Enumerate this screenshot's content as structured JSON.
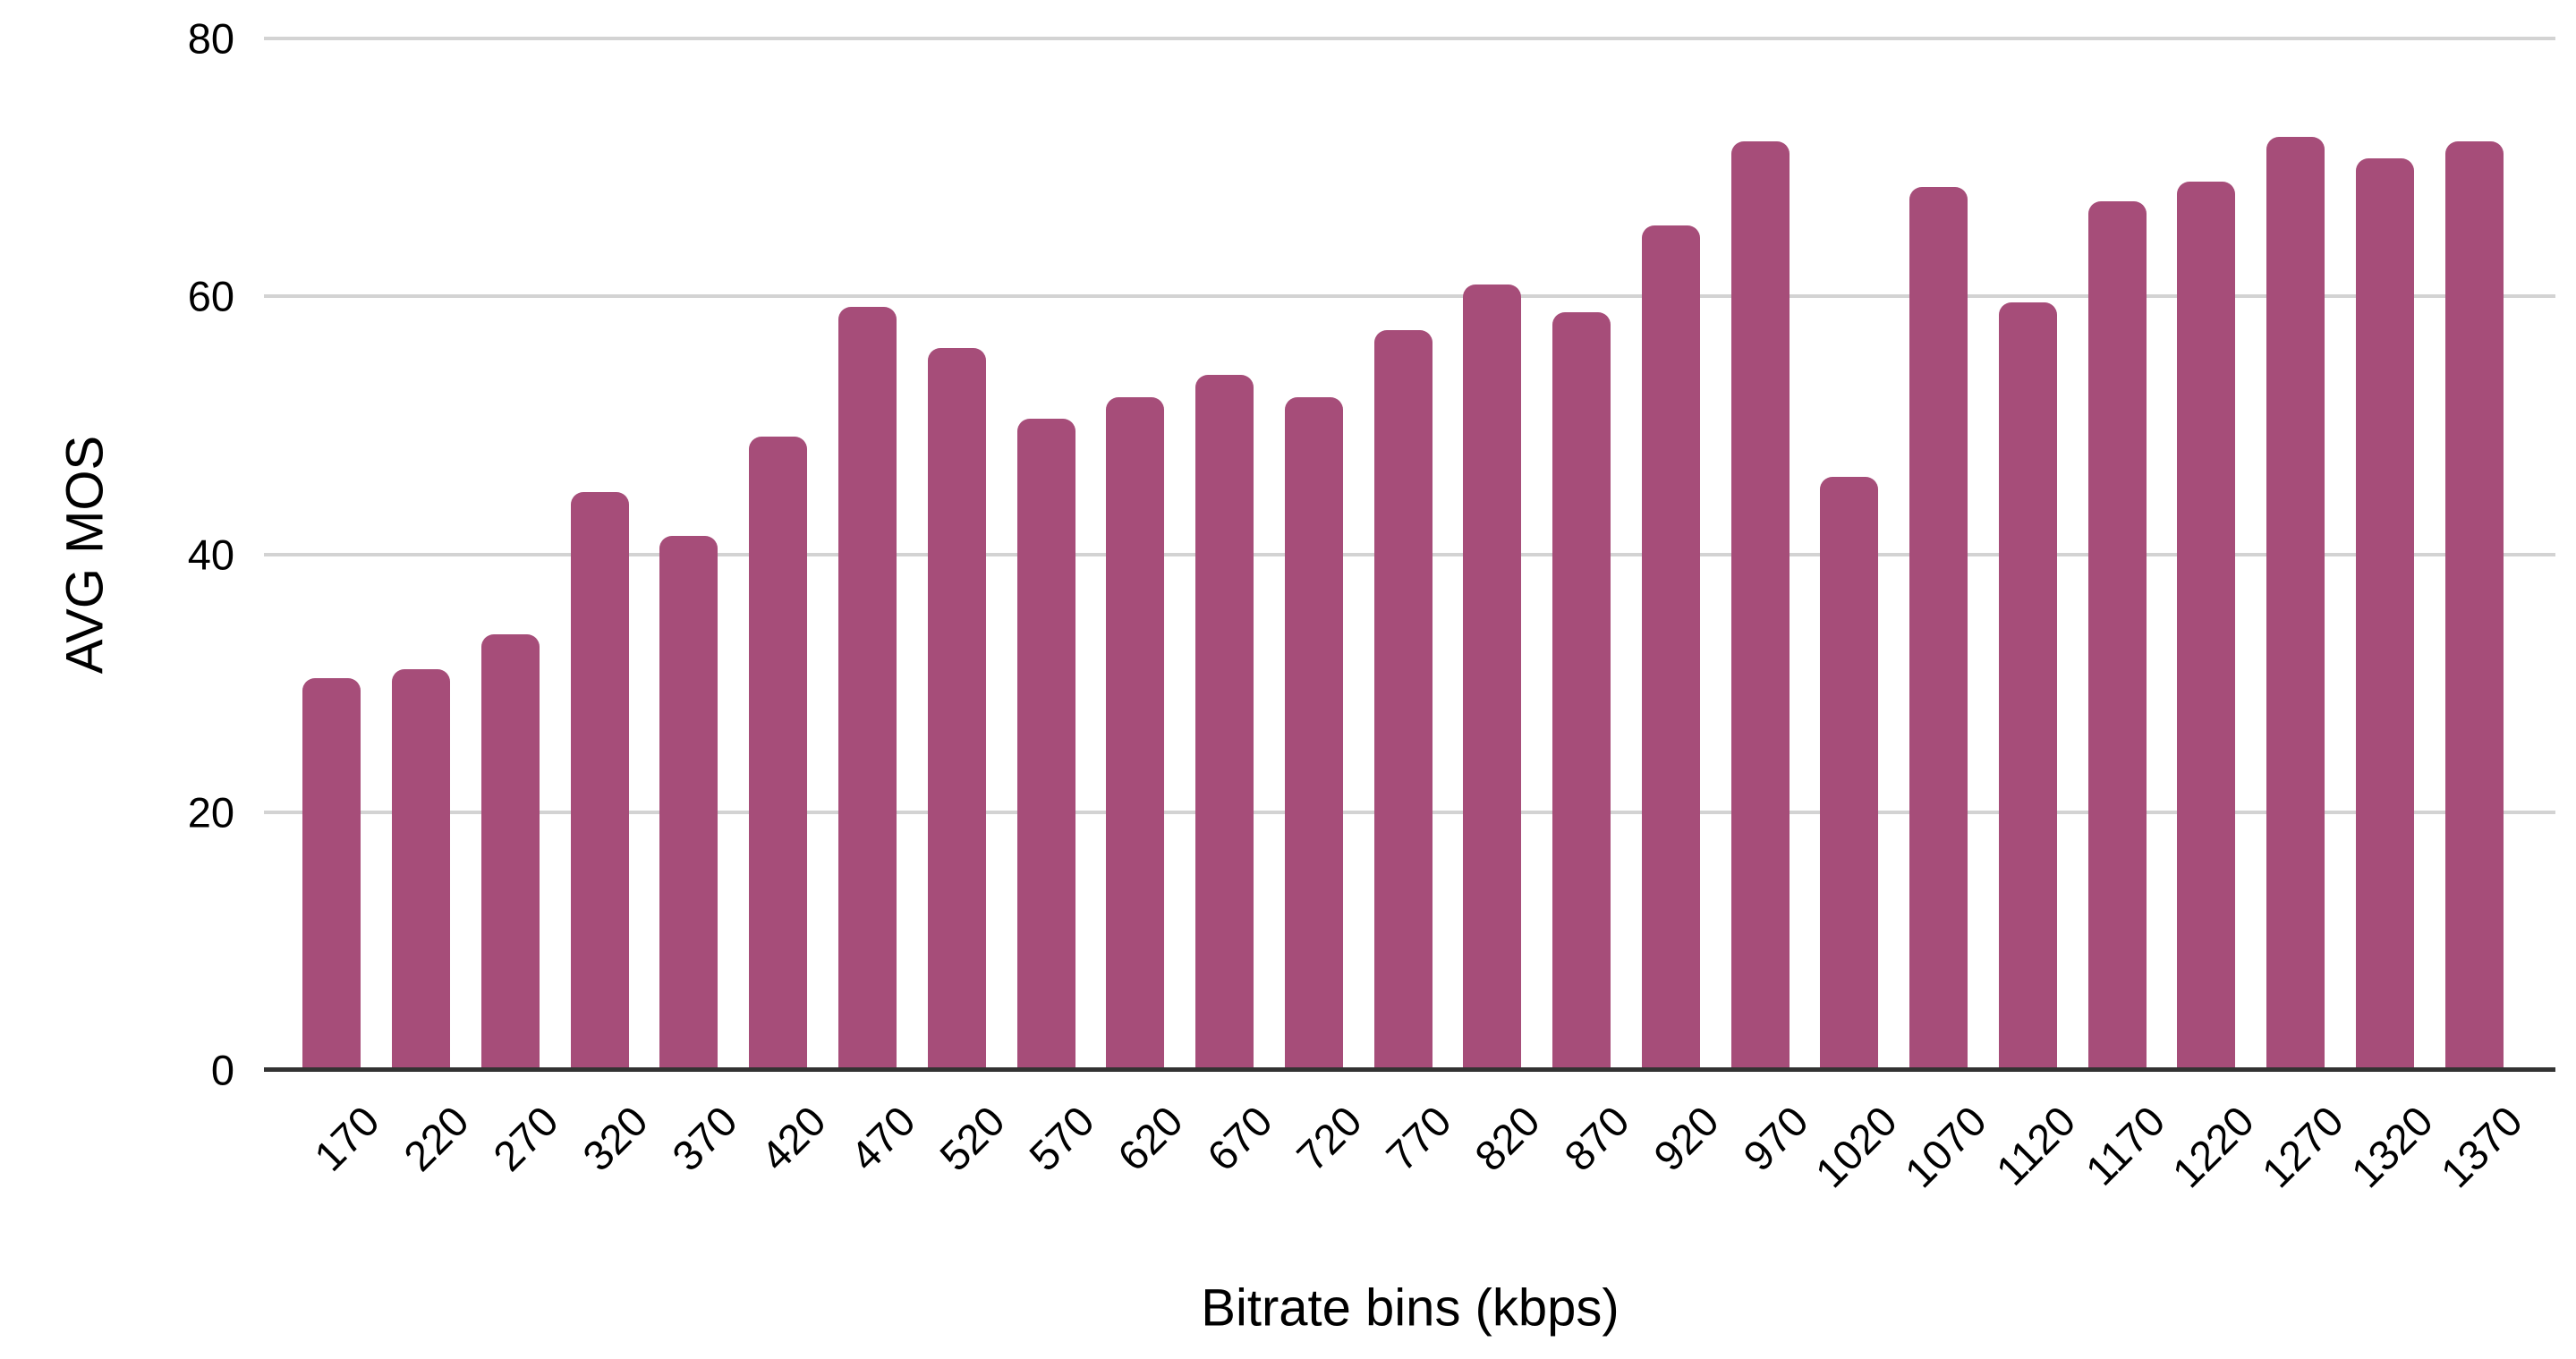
{
  "chart_data": {
    "type": "bar",
    "title": "",
    "xlabel": "Bitrate bins (kbps)",
    "ylabel": "AVG MOS",
    "categories": [
      "170",
      "220",
      "270",
      "320",
      "370",
      "420",
      "470",
      "520",
      "570",
      "620",
      "670",
      "720",
      "770",
      "820",
      "870",
      "920",
      "970",
      "1020",
      "1070",
      "1120",
      "1170",
      "1220",
      "1270",
      "1320",
      "1370"
    ],
    "values": [
      30.4,
      31.1,
      33.8,
      44.8,
      41.4,
      49.1,
      59.2,
      56.0,
      50.5,
      52.2,
      53.9,
      52.2,
      57.4,
      60.9,
      58.8,
      65.5,
      72.0,
      46.0,
      68.5,
      59.5,
      67.4,
      68.9,
      72.4,
      70.7,
      72.0
    ],
    "ylim": [
      0,
      80
    ],
    "yticks": [
      0,
      20,
      40,
      60,
      80
    ],
    "grid": true,
    "legend_position": "none",
    "x_tick_rotation_deg": -45,
    "bar_color": "#A64D79",
    "axis_line_color": "#333333",
    "gridline_color": "#D3D3D3",
    "label_color": "#000000",
    "background_color": "#FFFFFF"
  }
}
